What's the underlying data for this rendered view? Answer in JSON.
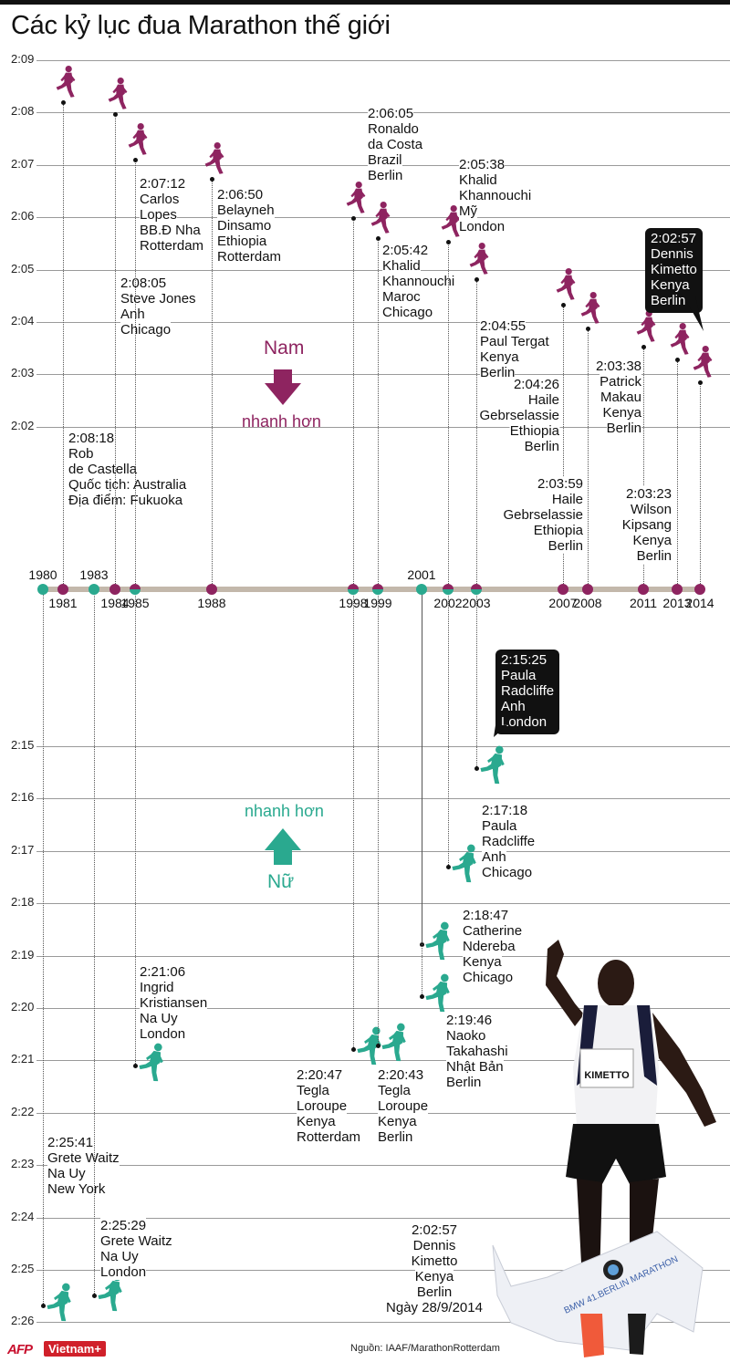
{
  "title": "Các kỷ lục đua Marathon thế giới",
  "colors": {
    "men": "#8e2460",
    "women": "#2aa98f",
    "timeline": "#c3b8ab",
    "callout": "#111111"
  },
  "chart_data": {
    "type": "scatter",
    "title": "Các kỷ lục đua Marathon thế giới",
    "x_ticks": [
      1980,
      1981,
      1983,
      1984,
      1985,
      1988,
      1998,
      1999,
      2001,
      2002,
      2003,
      2007,
      2008,
      2011,
      2013,
      2014
    ],
    "series": [
      {
        "name": "Nam",
        "direction_label": "nhanh hơn",
        "color": "#8e2460",
        "ylim": [
          "2:09",
          "2:02"
        ],
        "y_ticks": [
          "2:09",
          "2:08",
          "2:07",
          "2:06",
          "2:05",
          "2:04",
          "2:03",
          "2:02"
        ],
        "points": [
          {
            "year": 1981,
            "time": "2:08:18",
            "lines": [
              "Rob",
              "de Castella",
              "Quốc tịch: Australia",
              "Địa điểm: Fukuoka"
            ]
          },
          {
            "year": 1984,
            "time": "2:08:05",
            "lines": [
              "Steve Jones",
              "Anh",
              "Chicago"
            ]
          },
          {
            "year": 1985,
            "time": "2:07:12",
            "lines": [
              "Carlos",
              "Lopes",
              "BB.Đ Nha",
              "Rotterdam"
            ]
          },
          {
            "year": 1988,
            "time": "2:06:50",
            "lines": [
              "Belayneh",
              "Dinsamo",
              "Ethiopia",
              "Rotterdam"
            ]
          },
          {
            "year": 1998,
            "time": "2:06:05",
            "lines": [
              "Ronaldo",
              "da Costa",
              "Brazil",
              "Berlin"
            ]
          },
          {
            "year": 1999,
            "time": "2:05:42",
            "lines": [
              "Khalid",
              "Khannouchi",
              "Maroc",
              "Chicago"
            ]
          },
          {
            "year": 2002,
            "time": "2:05:38",
            "lines": [
              "Khalid",
              "Khannouchi",
              "Mỹ",
              "London"
            ]
          },
          {
            "year": 2003,
            "time": "2:04:55",
            "lines": [
              "Paul Tergat",
              "Kenya",
              "Berlin"
            ]
          },
          {
            "year": 2007,
            "time": "2:04:26",
            "lines": [
              "Haile",
              "Gebrselassie",
              "Ethiopia",
              "Berlin"
            ]
          },
          {
            "year": 2008,
            "time": "2:03:59",
            "lines": [
              "Haile",
              "Gebrselassie",
              "Ethiopia",
              "Berlin"
            ]
          },
          {
            "year": 2011,
            "time": "2:03:38",
            "lines": [
              "Patrick",
              "Makau",
              "Kenya",
              "Berlin"
            ]
          },
          {
            "year": 2013,
            "time": "2:03:23",
            "lines": [
              "Wilson",
              "Kipsang",
              "Kenya",
              "Berlin"
            ]
          },
          {
            "year": 2014,
            "time": "2:02:57",
            "lines": [
              "Dennis",
              "Kimetto",
              "Kenya",
              "Berlin"
            ],
            "highlight": true
          }
        ]
      },
      {
        "name": "Nữ",
        "direction_label": "nhanh hơn",
        "color": "#2aa98f",
        "ylim": [
          "2:26",
          "2:15"
        ],
        "y_ticks": [
          "2:15",
          "2:16",
          "2:17",
          "2:18",
          "2:19",
          "2:20",
          "2:21",
          "2:22",
          "2:23",
          "2:24",
          "2:25",
          "2:26"
        ],
        "points": [
          {
            "year": 1980,
            "time": "2:25:41",
            "lines": [
              "Grete Waitz",
              "Na Uy",
              "New York"
            ]
          },
          {
            "year": 1983,
            "time": "2:25:29",
            "lines": [
              "Grete Waitz",
              "Na Uy",
              "London"
            ]
          },
          {
            "year": 1985,
            "time": "2:21:06",
            "lines": [
              "Ingrid",
              "Kristiansen",
              "Na Uy",
              "London"
            ]
          },
          {
            "year": 1998,
            "time": "2:20:47",
            "lines": [
              "Tegla",
              "Loroupe",
              "Kenya",
              "Rotterdam"
            ]
          },
          {
            "year": 1999,
            "time": "2:20:43",
            "lines": [
              "Tegla",
              "Loroupe",
              "Kenya",
              "Berlin"
            ]
          },
          {
            "year": 2001,
            "time": "2:18:47",
            "lines": [
              "Catherine",
              "Ndereba",
              "Kenya",
              "Chicago"
            ]
          },
          {
            "year": 2001,
            "time": "2:19:46",
            "lines": [
              "Naoko",
              "Takahashi",
              "Nhật Bản",
              "Berlin"
            ]
          },
          {
            "year": 2002,
            "time": "2:17:18",
            "lines": [
              "Paula",
              "Radcliffe",
              "Anh",
              "Chicago"
            ]
          },
          {
            "year": 2003,
            "time": "2:15:25",
            "lines": [
              "Paula",
              "Radcliffe",
              "Anh",
              "London"
            ],
            "highlight": true
          }
        ]
      }
    ]
  },
  "photo": {
    "caption_lines": [
      "2:02:57",
      "Dennis",
      "Kimetto",
      "Kenya",
      "Berlin",
      "Ngày 28/9/2014"
    ],
    "bib_text": "KIMETTO",
    "banner_text": "BMW 41.BERLIN MARATHON"
  },
  "footer": {
    "source": "Nguồn: IAAF/MarathonRotterdam",
    "logo_afp": "AFP",
    "logo_vietnamplus": "Vietnam+"
  }
}
